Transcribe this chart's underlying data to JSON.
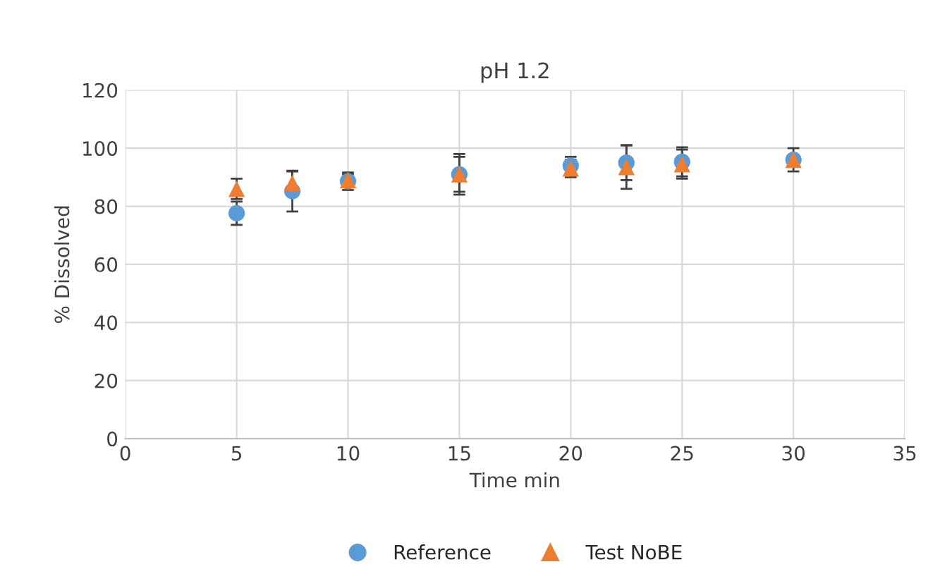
{
  "chart_data": {
    "type": "scatter",
    "title": "pH 1.2",
    "xlabel": "Time min",
    "ylabel": "% Dissolved",
    "x": [
      5,
      7.5,
      10,
      15,
      20,
      22.5,
      25,
      30
    ],
    "series": [
      {
        "name": "Reference",
        "color": "#5b9bd5",
        "marker": "circle",
        "values": [
          77.6,
          85.2,
          88.6,
          91,
          94,
          95,
          95.3,
          96
        ],
        "errors": [
          4,
          7,
          3,
          7,
          3,
          6,
          5,
          4
        ]
      },
      {
        "name": "Test NoBE",
        "color": "#ed7d31",
        "marker": "triangle",
        "values": [
          86,
          88,
          89,
          91,
          93,
          93.5,
          94.5,
          96
        ],
        "errors": [
          3.5,
          4,
          2,
          6,
          3,
          7.5,
          5,
          null
        ]
      }
    ],
    "xlim": [
      0,
      35
    ],
    "xticks": [
      0,
      5,
      10,
      15,
      20,
      25,
      30,
      35
    ],
    "ylim": [
      0,
      120
    ],
    "yticks": [
      0,
      20,
      40,
      60,
      80,
      100,
      120
    ],
    "grid": true,
    "legend": "bottom"
  }
}
